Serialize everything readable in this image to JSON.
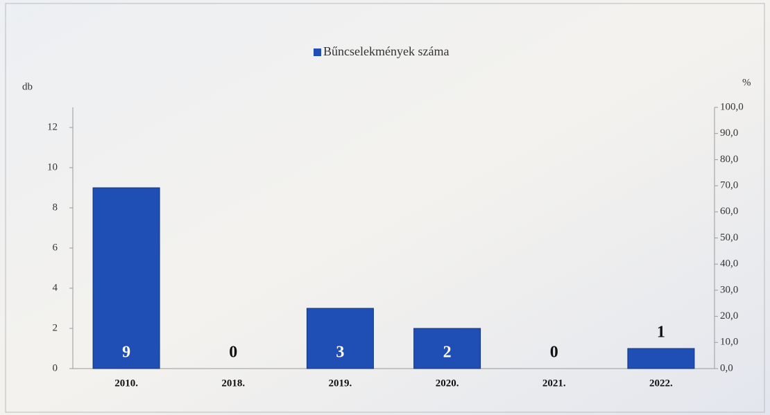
{
  "chart_data": {
    "type": "bar",
    "legend": "top",
    "y_label": "db",
    "y2_label": "%",
    "categories": [
      "2010.",
      "2018.",
      "2019.",
      "2020.",
      "2021.",
      "2022."
    ],
    "series": [
      {
        "name": "Bűncselekmények száma",
        "color": "#1f4fb4",
        "values": [
          9,
          0,
          3,
          2,
          0,
          1
        ]
      }
    ],
    "ylim": [
      0,
      13
    ],
    "yticks": [
      0,
      2,
      4,
      6,
      8,
      10,
      12
    ],
    "y2lim": [
      0,
      100
    ],
    "y2ticks": [
      {
        "value": 0,
        "label": "0,0"
      },
      {
        "value": 10,
        "label": "10,0"
      },
      {
        "value": 20,
        "label": "20,0"
      },
      {
        "value": 30,
        "label": "30,0"
      },
      {
        "value": 40,
        "label": "40,0"
      },
      {
        "value": 50,
        "label": "50,0"
      },
      {
        "value": 60,
        "label": "60,0"
      },
      {
        "value": 70,
        "label": "70,0"
      },
      {
        "value": 80,
        "label": "80,0"
      },
      {
        "value": 90,
        "label": "90,0"
      },
      {
        "value": 100,
        "label": "100,0"
      }
    ]
  }
}
